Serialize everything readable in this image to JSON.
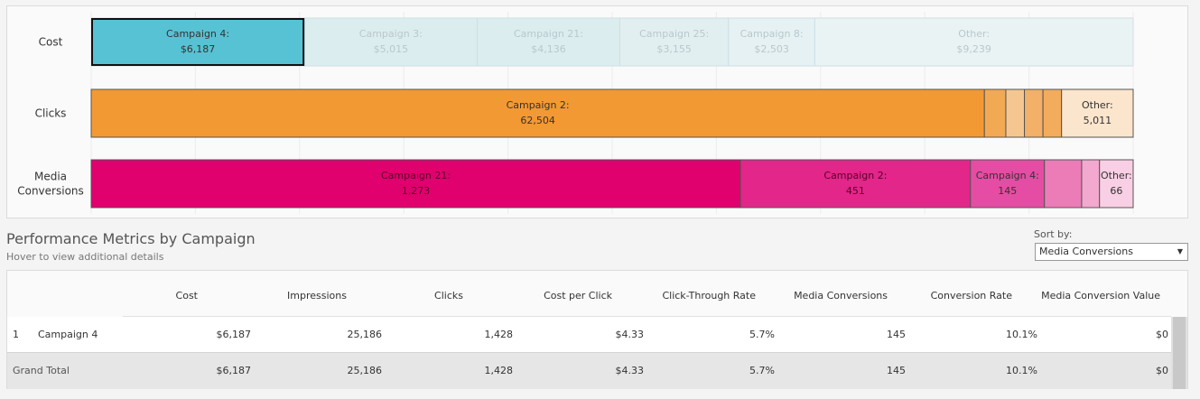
{
  "chart_data": {
    "type": "stacked-bar-100",
    "rows": [
      {
        "label": "Cost",
        "segments": [
          {
            "name": "Campaign 4:",
            "value_label": "$6,187",
            "value": 6187,
            "color": "#57c2d3",
            "highlighted": true
          },
          {
            "name": "Campaign 3:",
            "value_label": "$5,015",
            "value": 5015,
            "color": "#dcedf0",
            "highlighted": false
          },
          {
            "name": "Campaign 21:",
            "value_label": "$4,136",
            "value": 4136,
            "color": "#dcedf0",
            "highlighted": false
          },
          {
            "name": "Campaign 25:",
            "value_label": "$3,155",
            "value": 3155,
            "color": "#e2eff1",
            "highlighted": false
          },
          {
            "name": "Campaign 8:",
            "value_label": "$2,503",
            "value": 2503,
            "color": "#e6f1f3",
            "highlighted": false
          },
          {
            "name": "Other:",
            "value_label": "$9,239",
            "value": 9239,
            "color": "#eaf3f4",
            "highlighted": false
          }
        ]
      },
      {
        "label": "Clicks",
        "segments": [
          {
            "name": "Campaign 2:",
            "value_label": "62,504",
            "value": 62504,
            "color": "#f39933",
            "highlighted": false
          },
          {
            "name": "",
            "value_label": "",
            "value": 1500,
            "color": "#f2a954",
            "highlighted": false
          },
          {
            "name": "",
            "value_label": "",
            "value": 1300,
            "color": "#f5c690",
            "highlighted": false
          },
          {
            "name": "",
            "value_label": "",
            "value": 1300,
            "color": "#f2b068",
            "highlighted": false
          },
          {
            "name": "",
            "value_label": "",
            "value": 1300,
            "color": "#f3ac5c",
            "highlighted": false
          },
          {
            "name": "Other:",
            "value_label": "5,011",
            "value": 5011,
            "color": "#fbe5cc",
            "highlighted": false
          }
        ]
      },
      {
        "label": "Media Conversions",
        "label_lines": [
          "Media",
          "Conversions"
        ],
        "segments": [
          {
            "name": "Campaign 21:",
            "value_label": "1,273",
            "value": 1273,
            "color": "#e0006e",
            "highlighted": false
          },
          {
            "name": "Campaign 2:",
            "value_label": "451",
            "value": 451,
            "color": "#e2268a",
            "highlighted": false
          },
          {
            "name": "Campaign 4:",
            "value_label": "145",
            "value": 145,
            "color": "#e44da3",
            "highlighted": false
          },
          {
            "name": "",
            "value_label": "",
            "value": 73,
            "color": "#ec7cb8",
            "highlighted": false
          },
          {
            "name": "",
            "value_label": "",
            "value": 35,
            "color": "#f2a8cf",
            "highlighted": false
          },
          {
            "name": "Other:",
            "value_label": "66",
            "value": 66,
            "color": "#f8cfe4",
            "highlighted": false
          }
        ]
      }
    ]
  },
  "performance": {
    "title": "Performance Metrics by Campaign",
    "subtitle": "Hover to view additional details",
    "sort_label": "Sort by:",
    "sort_value": "Media Conversions",
    "columns": [
      "Cost",
      "Impressions",
      "Clicks",
      "Cost per Click",
      "Click-Through Rate",
      "Media Conversions",
      "Conversion Rate",
      "Media Conversion Value"
    ],
    "rows": [
      {
        "rank": "1",
        "name": "Campaign 4",
        "values": [
          "$6,187",
          "25,186",
          "1,428",
          "$4.33",
          "5.7%",
          "145",
          "10.1%",
          "$0"
        ]
      }
    ],
    "total": {
      "label": "Grand Total",
      "values": [
        "$6,187",
        "25,186",
        "1,428",
        "$4.33",
        "5.7%",
        "145",
        "10.1%",
        "$0"
      ]
    }
  }
}
